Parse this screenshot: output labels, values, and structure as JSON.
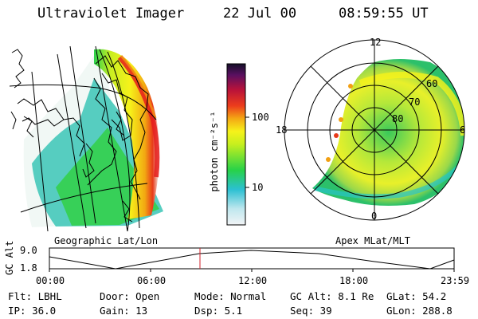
{
  "header": {
    "title": "Ultraviolet Imager",
    "date": "22 Jul 00",
    "time": "08:59:55 UT"
  },
  "panels": {
    "left_caption": "Geographic Lat/Lon",
    "right_caption": "Apex MLat/MLT"
  },
  "colorbar": {
    "unit_label": "photon cm⁻²s⁻¹",
    "ticks": [
      "100",
      "10"
    ]
  },
  "polar_plot": {
    "mlt_labels": [
      "12",
      "18",
      "6",
      "0"
    ],
    "mlat_labels": [
      "60",
      "70",
      "80"
    ]
  },
  "altitude_strip": {
    "ylabel": "GC Alt",
    "y_ticks": [
      "9.0",
      "1.8"
    ],
    "x_ticks": [
      "00:00",
      "06:00",
      "12:00",
      "18:00",
      "23:59"
    ],
    "marker_time": "08:59:55"
  },
  "info": {
    "row1": {
      "flt": "Flt: LBHL",
      "door": "Door: Open",
      "mode": "Mode: Normal",
      "gcalt": "GC Alt: 8.1 Re",
      "glat": "GLat:  54.2"
    },
    "row2": {
      "ip": "IP: 36.0",
      "gain": "Gain: 13",
      "dsp": "Dsp:    5.1",
      "seq": "Seq: 39",
      "glon": "GLon: 288.8"
    }
  },
  "colors": {
    "low": "#e6f2f5",
    "cyan": "#22bcd0",
    "green": "#22d44a",
    "yellow": "#f4f218",
    "orange": "#f2a012",
    "red": "#e82222",
    "dark": "#1a1030",
    "marker": "#d0202a"
  }
}
